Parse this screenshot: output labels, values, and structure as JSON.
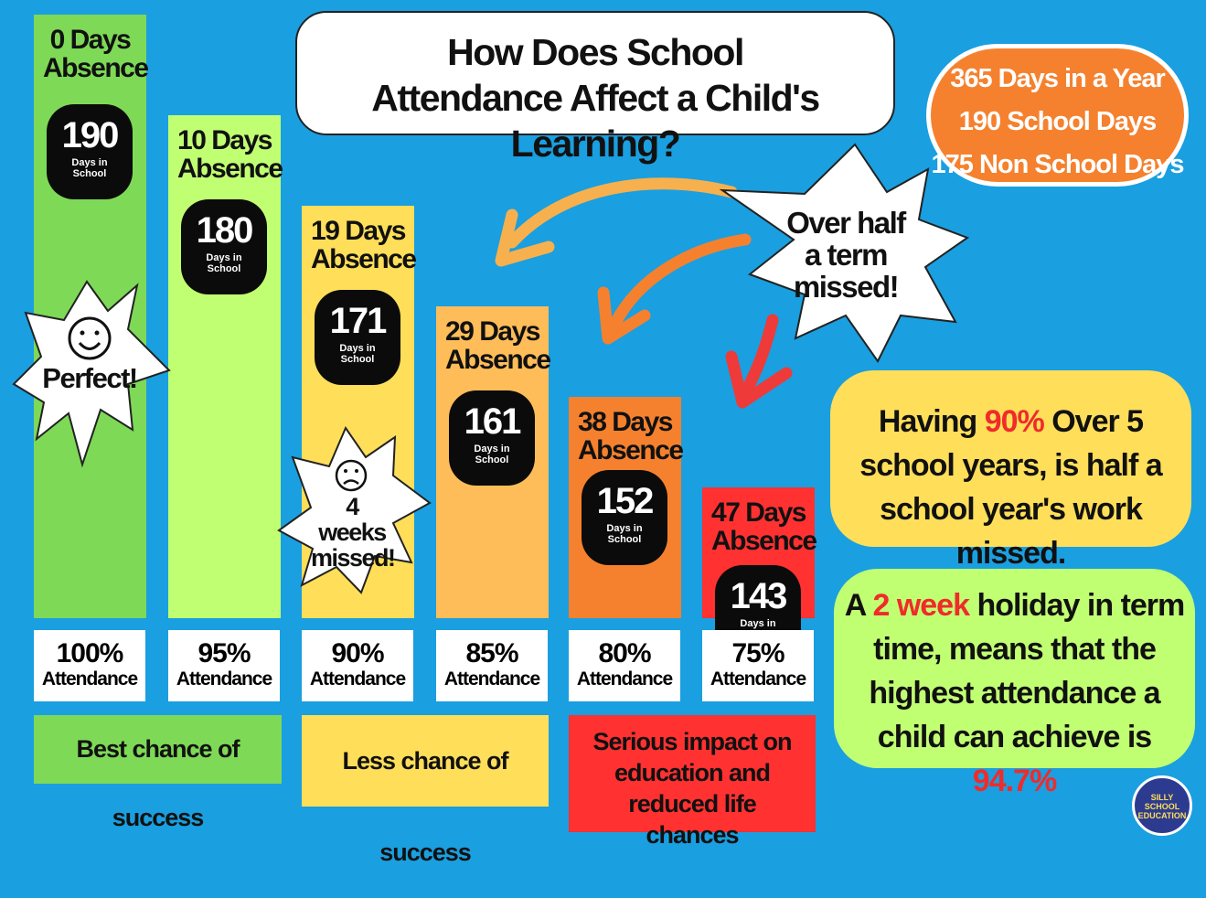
{
  "title": "How Does School Attendance Affect a Child's Learning?",
  "year_facts": [
    "365 Days in a Year",
    "190 School Days",
    "175 Non School Days"
  ],
  "chart_data": {
    "type": "bar",
    "categories": [
      "100% Attendance",
      "95% Attendance",
      "90% Attendance",
      "85% Attendance",
      "80% Attendance",
      "75% Attendance"
    ],
    "series": [
      {
        "values": [
          190,
          180,
          171,
          161,
          152,
          143
        ]
      }
    ],
    "ylim": [
      0,
      190
    ],
    "bars": [
      {
        "absence_label": "0 Days Absence",
        "days": 190,
        "days_unit": "Days in School",
        "attendance_pct": "100%",
        "attendance_label": "Attendance",
        "color": "#7ed957"
      },
      {
        "absence_label": "10 Days Absence",
        "days": 180,
        "days_unit": "Days in School",
        "attendance_pct": "95%",
        "attendance_label": "Attendance",
        "color": "#c1ff72"
      },
      {
        "absence_label": "19 Days Absence",
        "days": 171,
        "days_unit": "Days in School",
        "attendance_pct": "90%",
        "attendance_label": "Attendance",
        "color": "#ffde59"
      },
      {
        "absence_label": "29 Days Absence",
        "days": 161,
        "days_unit": "Days in School",
        "attendance_pct": "85%",
        "attendance_label": "Attendance",
        "color": "#ffbd59"
      },
      {
        "absence_label": "38 Days Absence",
        "days": 152,
        "days_unit": "Days in School",
        "attendance_pct": "80%",
        "attendance_label": "Attendance",
        "color": "#f5812e"
      },
      {
        "absence_label": "47 Days Absence",
        "days": 143,
        "days_unit": "Days in School",
        "attendance_pct": "75%",
        "attendance_label": "Attendance",
        "color": "#ff3131"
      }
    ],
    "annotations": {
      "perfect": "Perfect!",
      "four_weeks": "4 weeks missed!",
      "half_term": "Over half a term missed!"
    }
  },
  "outcomes": {
    "best": "Best chance of success",
    "less": "Less chance of success",
    "serious": "Serious impact on education and reduced life chances"
  },
  "note_90": {
    "pre": "Having ",
    "highlight": "90%",
    "post": " Over 5 school years, is half a school year's work missed."
  },
  "note_holiday": {
    "pre": "A ",
    "highlight1": "2 week",
    "mid": " holiday in term time, means that the highest attendance a child can achieve is ",
    "highlight2": "94.7%"
  },
  "logo_text": "SILLY SCHOOL EDUCATION",
  "colors": {
    "background": "#1a9fe0",
    "accent_red": "#ef2b2b",
    "orange": "#f5812e",
    "green": "#7ed957",
    "lime": "#c1ff72",
    "yellow": "#ffde59"
  }
}
